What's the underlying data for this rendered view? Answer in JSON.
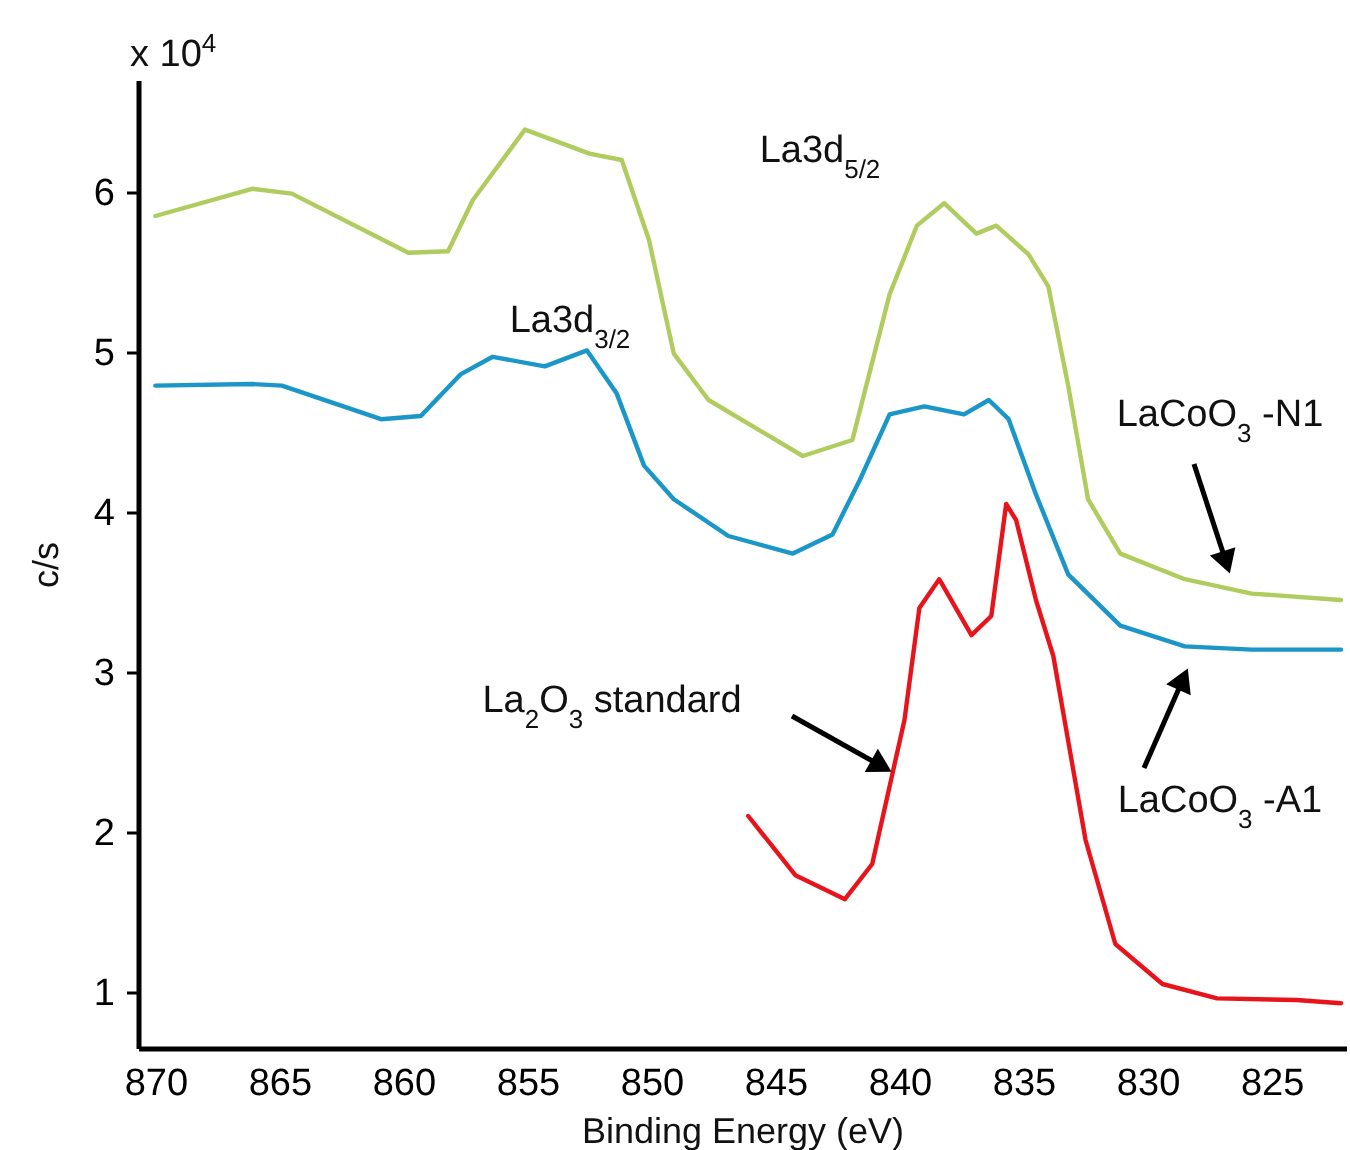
{
  "chart_data": {
    "type": "line",
    "xlabel": "Binding Energy (eV)",
    "ylabel": "c/s",
    "xlim": [
      870.7,
      822
    ],
    "xticks": [
      870,
      865,
      860,
      855,
      850,
      845,
      840,
      835,
      830,
      825
    ],
    "ylim": [
      0.65,
      6.7
    ],
    "yticks": [
      1,
      2,
      3,
      4,
      5,
      6
    ],
    "grid": false,
    "line_style": "solid",
    "annotations": [
      "x 10$^{4}$",
      "La3d$_{3/2}$",
      "La3d$_{5/2}$",
      "LaCoO$_{3}$ -N1",
      "LaCoO$_{3}$ -A1",
      "La$_{2}$O$_{3}$ standard"
    ],
    "series": [
      {
        "color": "#b0cc5e",
        "x": [
          870,
          866.1,
          864.5,
          859.8,
          858.2,
          857.2,
          855.1,
          852.5,
          851.2,
          850.1,
          849.1,
          847.7,
          843.9,
          841.9,
          840.4,
          839.3,
          838.2,
          836.9,
          836.1,
          834.8,
          834.0,
          833.2,
          832.4,
          831.1,
          828.5,
          825.8,
          822.2
        ],
        "values": [
          5.85,
          6.02,
          5.99,
          5.62,
          5.63,
          5.95,
          6.39,
          6.24,
          6.2,
          5.7,
          4.99,
          4.7,
          4.35,
          4.45,
          5.36,
          5.79,
          5.93,
          5.74,
          5.79,
          5.61,
          5.41,
          4.79,
          4.08,
          3.74,
          3.58,
          3.49,
          3.45
        ]
      },
      {
        "color": "#1a96c8",
        "x": [
          870,
          866.1,
          864.9,
          860.9,
          859.3,
          857.7,
          856.4,
          854.3,
          852.6,
          851.4,
          850.3,
          849.1,
          846.9,
          844.3,
          842.7,
          841.6,
          840.4,
          839.0,
          837.4,
          836.4,
          835.6,
          834.5,
          833.2,
          831.1,
          828.5,
          825.8,
          822.2
        ],
        "values": [
          4.79,
          4.8,
          4.79,
          4.58,
          4.6,
          4.86,
          4.97,
          4.91,
          5.01,
          4.74,
          4.29,
          4.08,
          3.85,
          3.74,
          3.86,
          4.2,
          4.61,
          4.66,
          4.61,
          4.7,
          4.58,
          4.11,
          3.61,
          3.29,
          3.16,
          3.14,
          3.14
        ]
      },
      {
        "color": "#e8141c",
        "x": [
          846.1,
          844.2,
          842.2,
          841.1,
          839.8,
          839.2,
          838.4,
          837.1,
          836.3,
          835.7,
          835.3,
          834.5,
          833.8,
          832.5,
          831.3,
          829.4,
          827.2,
          824,
          822.2
        ],
        "values": [
          2.1,
          1.73,
          1.58,
          1.8,
          2.7,
          3.4,
          3.58,
          3.23,
          3.35,
          4.05,
          3.95,
          3.45,
          3.1,
          1.95,
          1.3,
          1.05,
          0.96,
          0.95,
          0.93
        ]
      }
    ]
  }
}
